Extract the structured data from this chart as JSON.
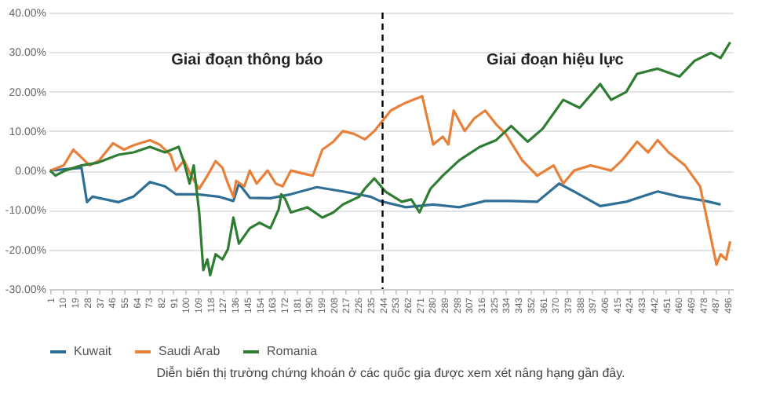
{
  "chart_data": {
    "type": "line",
    "xlim": [
      0,
      500
    ],
    "xticks": [
      1,
      10,
      19,
      28,
      37,
      46,
      55,
      64,
      73,
      82,
      91,
      100,
      109,
      118,
      127,
      136,
      145,
      154,
      163,
      172,
      181,
      190,
      199,
      208,
      217,
      226,
      235,
      244,
      253,
      262,
      271,
      280,
      289,
      298,
      307,
      316,
      325,
      334,
      343,
      352,
      361,
      370,
      379,
      388,
      397,
      406,
      415,
      424,
      433,
      442,
      451,
      460,
      469,
      478,
      487,
      496
    ],
    "ylim": [
      -30,
      40
    ],
    "yticks": [
      {
        "value": -30,
        "label": "-30.00%"
      },
      {
        "value": -20,
        "label": "-20.00%"
      },
      {
        "value": -10,
        "label": "-10.00%"
      },
      {
        "value": 0,
        "label": "0.00%"
      },
      {
        "value": 10,
        "label": "10.00%"
      },
      {
        "value": 20,
        "label": "20.00%"
      },
      {
        "value": 30,
        "label": "30.00%"
      },
      {
        "value": 40,
        "label": "40.00%"
      }
    ],
    "grid": "y",
    "legend": "bottom",
    "series": [
      {
        "name": "Kuwait",
        "color": "#2f6f96",
        "x": [
          1,
          24,
          28,
          32,
          51,
          62,
          74,
          85,
          93,
          108,
          124,
          135,
          139,
          147,
          162,
          177,
          196,
          215,
          235,
          242,
          261,
          281,
          300,
          319,
          338,
          357,
          373,
          384,
          403,
          422,
          445,
          461,
          480,
          491
        ],
        "values": [
          0,
          0.7,
          -8.0,
          -6.6,
          -8.0,
          -6.6,
          -2.9,
          -4.0,
          -6.0,
          -6.0,
          -6.6,
          -7.7,
          -3.3,
          -6.9,
          -7.0,
          -6.0,
          -4.2,
          -5.3,
          -6.6,
          -7.7,
          -9.3,
          -8.6,
          -9.3,
          -7.7,
          -7.7,
          -7.9,
          -3.3,
          -5.3,
          -9.0,
          -7.9,
          -5.3,
          -6.6,
          -7.7,
          -8.6
        ]
      },
      {
        "name": "Saudi Arab",
        "color": "#e8803a",
        "x": [
          1,
          11,
          18,
          30,
          37,
          47,
          55,
          62,
          74,
          81,
          89,
          93,
          99,
          104,
          110,
          116,
          122,
          127,
          131,
          135,
          137,
          143,
          147,
          152,
          160,
          166,
          171,
          177,
          185,
          193,
          200,
          208,
          215,
          223,
          231,
          238,
          250,
          261,
          273,
          281,
          288,
          292,
          296,
          304,
          311,
          319,
          327,
          334,
          346,
          357,
          369,
          376,
          384,
          396,
          411,
          419,
          430,
          438,
          445,
          453,
          465,
          476,
          484,
          488,
          491,
          495,
          498
        ],
        "values": [
          0,
          1.3,
          5.3,
          1.3,
          2.6,
          6.9,
          5.3,
          6.4,
          7.7,
          6.6,
          4.0,
          0,
          2.6,
          -1.3,
          -4.6,
          -1.3,
          2.4,
          0.7,
          -3.3,
          -6.6,
          -2.6,
          -4.0,
          0,
          -3.3,
          0,
          -3.3,
          -4.0,
          0,
          -0.7,
          -1.3,
          5.3,
          7.3,
          10.0,
          9.3,
          7.9,
          10.0,
          15.2,
          17.2,
          18.8,
          6.6,
          8.6,
          6.6,
          15.2,
          10.0,
          13.2,
          15.2,
          11.7,
          9.3,
          2.6,
          -1.3,
          1.3,
          -3.3,
          0,
          1.3,
          0,
          2.6,
          7.3,
          4.6,
          7.7,
          4.6,
          1.3,
          -4.0,
          -17.2,
          -23.8,
          -21.2,
          -22.5,
          -17.9
        ]
      },
      {
        "name": "Romania",
        "color": "#2e7d32",
        "x": [
          1,
          5,
          12,
          24,
          36,
          51,
          62,
          74,
          85,
          95,
          99,
          103,
          106,
          110,
          113,
          116,
          118,
          122,
          127,
          131,
          135,
          139,
          147,
          154,
          162,
          168,
          170,
          173,
          177,
          189,
          200,
          208,
          215,
          227,
          231,
          238,
          246,
          258,
          265,
          271,
          279,
          288,
          300,
          315,
          327,
          338,
          350,
          361,
          376,
          388,
          403,
          411,
          422,
          430,
          445,
          461,
          472,
          484,
          491,
          498
        ],
        "values": [
          0,
          -1.3,
          0,
          1.3,
          2.0,
          4.0,
          4.6,
          6.0,
          4.6,
          6.0,
          2.0,
          -3.3,
          1.3,
          -10.6,
          -25.2,
          -22.5,
          -26.5,
          -21.2,
          -22.5,
          -19.9,
          -11.9,
          -18.5,
          -14.6,
          -13.2,
          -14.6,
          -9.9,
          -6.0,
          -7.3,
          -10.6,
          -9.3,
          -11.9,
          -10.6,
          -8.6,
          -6.6,
          -4.6,
          -2.0,
          -5.3,
          -7.9,
          -7.3,
          -10.6,
          -4.6,
          -1.3,
          2.6,
          6.0,
          7.7,
          11.3,
          7.3,
          10.6,
          17.9,
          15.9,
          21.9,
          17.9,
          19.9,
          24.5,
          25.8,
          23.8,
          27.8,
          29.8,
          28.5,
          32.5
        ]
      }
    ],
    "ref_lines": [
      {
        "axis": "x",
        "value": 244,
        "color": "#000000",
        "line_style": "dashed"
      }
    ],
    "annotations": [
      "Giai đoạn thông báo",
      "Giai đoạn hiệu lực",
      "Diễn biến thị trường chứng khoán ở các quốc gia được xem xét nâng hạng gần đây."
    ]
  }
}
